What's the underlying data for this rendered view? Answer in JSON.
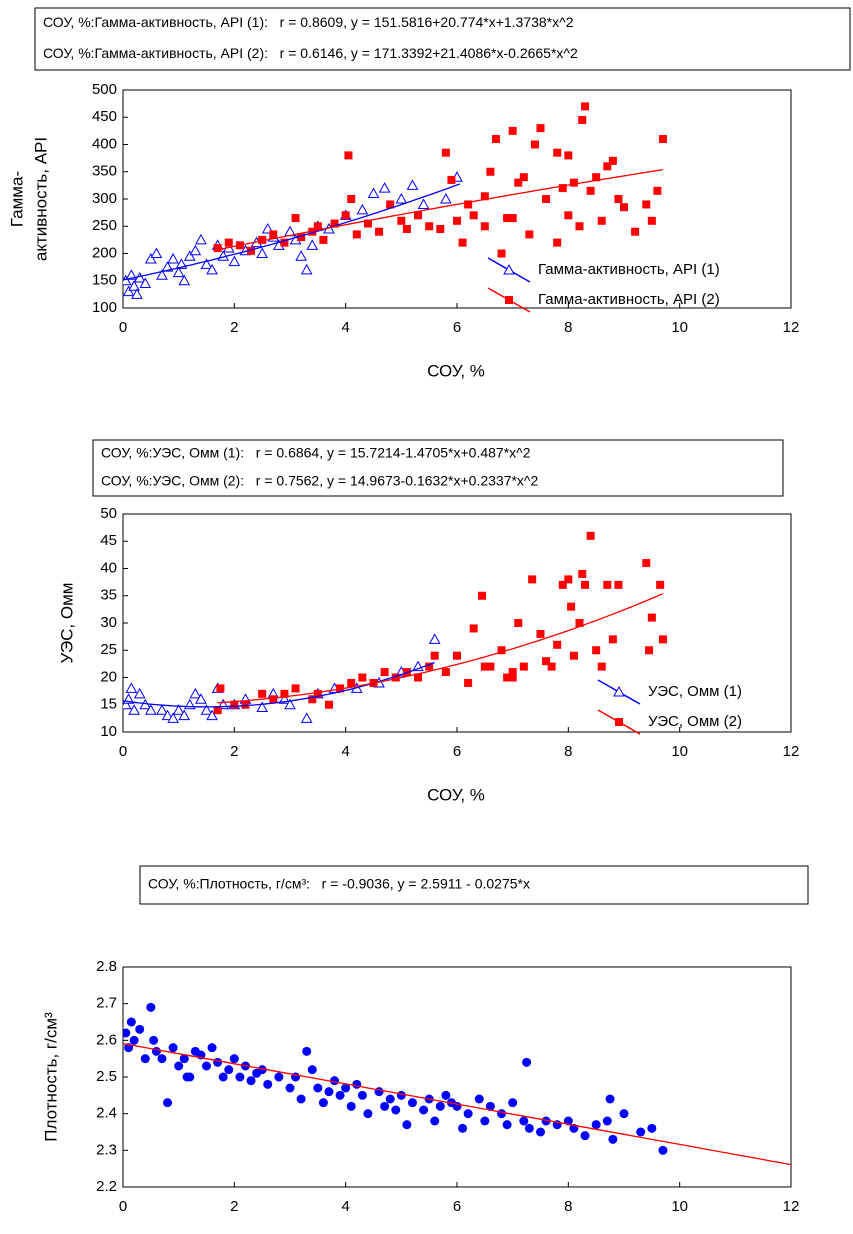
{
  "chart_data": [
    {
      "type": "scatter",
      "annotation": [
        "СОУ, %:Гамма-активность, API (1):   r = 0.8609, y = 151.5816+20.774*x+1.3738*x^2",
        "СОУ, %:Гамма-активность, API (2):   r = 0.6146, y = 171.3392+21.4086*x-0.2665*x^2"
      ],
      "xlabel": "СОУ, %",
      "ylabel": [
        "Гамма-",
        "активность, API"
      ],
      "xlim": [
        0,
        12
      ],
      "xticks": [
        0,
        2,
        4,
        6,
        8,
        10,
        12
      ],
      "ylim": [
        100,
        500
      ],
      "yticks": [
        100,
        150,
        200,
        250,
        300,
        350,
        400,
        450,
        500
      ],
      "legend": "lower right",
      "series": [
        {
          "name": "Гамма-активность, API (1)",
          "color": "#0000ff",
          "marker": "triangle-open",
          "fit": {
            "coefficients": [
              151.5816,
              20.774,
              1.3738
            ],
            "x_range": [
              0,
              6.05
            ]
          },
          "x": [
            0.05,
            0.1,
            0.15,
            0.2,
            0.25,
            0.3,
            0.4,
            0.5,
            0.6,
            0.7,
            0.8,
            0.9,
            1.0,
            1.05,
            1.1,
            1.2,
            1.3,
            1.4,
            1.5,
            1.6,
            1.7,
            1.8,
            1.9,
            2.0,
            2.2,
            2.4,
            2.5,
            2.6,
            2.7,
            2.8,
            3.0,
            3.1,
            3.2,
            3.3,
            3.4,
            3.5,
            3.7,
            4.0,
            4.3,
            4.5,
            4.7,
            5.0,
            5.2,
            5.4,
            5.8,
            6.0
          ],
          "values": [
            150,
            130,
            160,
            140,
            125,
            155,
            145,
            190,
            200,
            160,
            175,
            190,
            165,
            180,
            150,
            195,
            205,
            225,
            180,
            170,
            215,
            195,
            210,
            185,
            205,
            220,
            200,
            245,
            230,
            215,
            240,
            225,
            195,
            170,
            215,
            250,
            245,
            270,
            280,
            310,
            320,
            300,
            325,
            290,
            300,
            340
          ]
        },
        {
          "name": "Гамма-активность, API (2)",
          "color": "#ff0000",
          "marker": "square-filled",
          "fit": {
            "coefficients": [
              171.3392,
              21.4086,
              -0.2665
            ],
            "x_range": [
              1.7,
              9.7
            ]
          },
          "x": [
            1.7,
            1.9,
            2.1,
            2.3,
            2.5,
            2.7,
            2.9,
            3.1,
            3.2,
            3.4,
            3.5,
            3.6,
            3.8,
            4.0,
            4.05,
            4.1,
            4.2,
            4.4,
            4.6,
            4.8,
            5.0,
            5.1,
            5.3,
            5.5,
            5.7,
            5.8,
            5.9,
            6.0,
            6.1,
            6.2,
            6.3,
            6.5,
            6.6,
            6.7,
            6.8,
            6.9,
            7.0,
            7.1,
            7.2,
            7.3,
            7.4,
            7.5,
            7.6,
            7.8,
            7.9,
            8.0,
            8.1,
            8.2,
            8.25,
            8.3,
            8.4,
            8.5,
            8.6,
            8.7,
            8.8,
            8.9,
            9.0,
            9.2,
            9.4,
            9.5,
            9.6,
            9.7,
            7.0,
            7.8,
            8.0,
            6.5
          ],
          "values": [
            210,
            220,
            215,
            205,
            225,
            235,
            220,
            265,
            230,
            240,
            250,
            225,
            255,
            270,
            380,
            300,
            235,
            255,
            240,
            290,
            260,
            245,
            270,
            250,
            245,
            385,
            335,
            260,
            220,
            290,
            270,
            250,
            350,
            410,
            200,
            265,
            425,
            330,
            340,
            235,
            400,
            430,
            300,
            220,
            320,
            270,
            330,
            250,
            445,
            470,
            315,
            340,
            260,
            360,
            370,
            300,
            285,
            240,
            290,
            260,
            315,
            410,
            265,
            385,
            380,
            305
          ]
        }
      ]
    },
    {
      "type": "scatter",
      "annotation": [
        "СОУ, %:УЭС, Омм (1):   r = 0.6864, y = 15.7214-1.4705*x+0.487*x^2",
        "СОУ, %:УЭС, Омм (2):   r = 0.7562, y = 14.9673-0.1632*x+0.2337*x^2"
      ],
      "xlabel": "СОУ, %",
      "ylabel": [
        "УЭС, Омм"
      ],
      "xlim": [
        0,
        12
      ],
      "xticks": [
        0,
        2,
        4,
        6,
        8,
        10,
        12
      ],
      "ylim": [
        10,
        50
      ],
      "yticks": [
        10,
        15,
        20,
        25,
        30,
        35,
        40,
        45,
        50
      ],
      "legend": "lower right",
      "series": [
        {
          "name": "УЭС, Омм (1)",
          "color": "#0000ff",
          "marker": "triangle-open",
          "fit": {
            "coefficients": [
              15.7214,
              -1.4705,
              0.487
            ],
            "x_range": [
              0,
              5.6
            ]
          },
          "x": [
            0.05,
            0.1,
            0.15,
            0.2,
            0.3,
            0.4,
            0.5,
            0.7,
            0.8,
            0.9,
            1.0,
            1.1,
            1.2,
            1.3,
            1.4,
            1.5,
            1.6,
            1.7,
            1.8,
            2.0,
            2.2,
            2.5,
            2.7,
            2.9,
            3.0,
            3.3,
            3.5,
            3.8,
            4.2,
            4.6,
            5.0,
            5.3,
            5.6
          ],
          "values": [
            15,
            16,
            18,
            14,
            17,
            15,
            14,
            14,
            13,
            12.5,
            14,
            13,
            15,
            17,
            16,
            14,
            13,
            18,
            15,
            15,
            16,
            14.5,
            17,
            16,
            15,
            12.5,
            17,
            18,
            18,
            19,
            21,
            22,
            27
          ]
        },
        {
          "name": "УЭС, Омм (2)",
          "color": "#ff0000",
          "marker": "square-filled",
          "fit": {
            "coefficients": [
              14.9673,
              -0.1632,
              0.2337
            ],
            "x_range": [
              1.7,
              9.7
            ]
          },
          "x": [
            1.7,
            1.75,
            2.0,
            2.2,
            2.5,
            2.7,
            2.9,
            3.1,
            3.4,
            3.5,
            3.7,
            3.9,
            4.1,
            4.3,
            4.5,
            4.7,
            4.9,
            5.1,
            5.3,
            5.5,
            5.6,
            5.8,
            6.0,
            6.2,
            6.3,
            6.45,
            6.6,
            6.8,
            6.9,
            7.0,
            7.1,
            7.2,
            7.35,
            7.5,
            7.6,
            7.8,
            7.9,
            8.0,
            8.05,
            8.1,
            8.2,
            8.25,
            8.3,
            8.4,
            8.5,
            8.7,
            8.8,
            8.9,
            9.4,
            9.45,
            9.5,
            9.65,
            9.7,
            6.5,
            7.0,
            7.7,
            8.6
          ],
          "values": [
            14,
            18,
            15,
            15,
            17,
            16,
            17,
            18,
            16,
            17,
            15,
            18,
            19,
            20,
            19,
            21,
            20,
            21,
            20,
            22,
            24,
            21,
            24,
            19,
            29,
            35,
            22,
            25,
            20,
            21,
            30,
            22,
            38,
            28,
            23,
            26,
            37,
            38,
            33,
            24,
            30,
            39,
            37,
            46,
            25,
            37,
            27,
            37,
            41,
            25,
            31,
            37,
            27,
            22,
            20,
            22,
            22
          ]
        }
      ]
    },
    {
      "type": "scatter",
      "annotation": [
        "СОУ, %:Плотность, г/см³:   r = -0.9036, y = 2.5911 - 0.0275*x"
      ],
      "xlabel": "СОУ, %",
      "ylabel": [
        "Плотность, г/см³"
      ],
      "xlim": [
        0,
        12
      ],
      "xticks": [
        0,
        2,
        4,
        6,
        8,
        10,
        12
      ],
      "ylim": [
        2.2,
        2.8
      ],
      "yticks": [
        2.2,
        2.3,
        2.4,
        2.5,
        2.6,
        2.7,
        2.8
      ],
      "series": [
        {
          "color": "#0000ff",
          "marker": "circle-filled",
          "fit": {
            "coefficients": [
              2.5911,
              -0.0275
            ],
            "x_range": [
              0,
              12
            ],
            "color": "#ff0000"
          },
          "x": [
            0.05,
            0.1,
            0.15,
            0.2,
            0.3,
            0.4,
            0.5,
            0.55,
            0.6,
            0.7,
            0.8,
            0.9,
            1.0,
            1.1,
            1.2,
            1.3,
            1.4,
            1.5,
            1.6,
            1.7,
            1.8,
            1.9,
            2.0,
            2.1,
            2.2,
            2.3,
            2.5,
            2.6,
            2.8,
            3.0,
            3.1,
            3.2,
            3.3,
            3.4,
            3.5,
            3.6,
            3.8,
            3.9,
            4.0,
            4.1,
            4.2,
            4.3,
            4.4,
            4.6,
            4.7,
            4.8,
            5.0,
            5.1,
            5.2,
            5.4,
            5.5,
            5.6,
            5.8,
            5.9,
            6.0,
            6.1,
            6.2,
            6.4,
            6.5,
            6.6,
            6.8,
            6.9,
            7.0,
            7.2,
            7.25,
            7.3,
            7.5,
            7.6,
            7.8,
            8.0,
            8.1,
            8.3,
            8.5,
            8.7,
            8.75,
            8.8,
            9.0,
            9.3,
            9.5,
            9.7,
            5.7,
            4.9,
            3.7,
            2.4,
            1.15
          ],
          "values": [
            2.62,
            2.58,
            2.65,
            2.6,
            2.63,
            2.55,
            2.69,
            2.6,
            2.57,
            2.55,
            2.43,
            2.58,
            2.53,
            2.55,
            2.5,
            2.57,
            2.56,
            2.53,
            2.58,
            2.54,
            2.5,
            2.52,
            2.55,
            2.5,
            2.53,
            2.49,
            2.52,
            2.48,
            2.5,
            2.47,
            2.5,
            2.44,
            2.57,
            2.52,
            2.47,
            2.43,
            2.49,
            2.45,
            2.47,
            2.42,
            2.48,
            2.45,
            2.4,
            2.46,
            2.42,
            2.44,
            2.45,
            2.37,
            2.43,
            2.41,
            2.44,
            2.38,
            2.45,
            2.43,
            2.42,
            2.36,
            2.4,
            2.44,
            2.38,
            2.42,
            2.4,
            2.37,
            2.43,
            2.38,
            2.54,
            2.36,
            2.35,
            2.38,
            2.37,
            2.38,
            2.36,
            2.34,
            2.37,
            2.38,
            2.44,
            2.33,
            2.4,
            2.35,
            2.36,
            2.3,
            2.42,
            2.41,
            2.46,
            2.51,
            2.5
          ]
        }
      ]
    }
  ]
}
